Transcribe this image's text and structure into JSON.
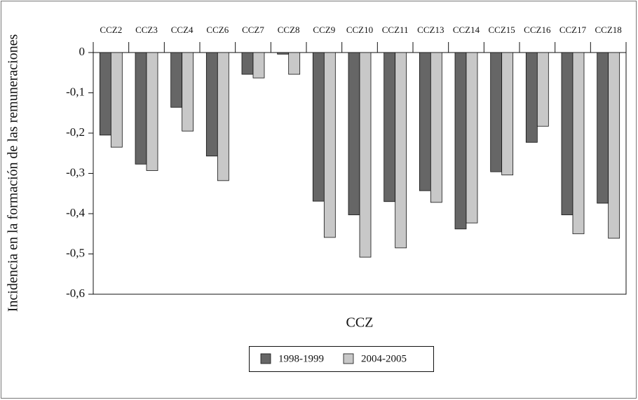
{
  "chart_data": {
    "type": "bar",
    "x_label": "CCZ",
    "y_label": "Incidencia en la formación de las remuneraciones",
    "categories": [
      "CCZ2",
      "CCZ3",
      "CCZ4",
      "CCZ6",
      "CCZ7",
      "CCZ8",
      "CCZ9",
      "CCZ10",
      "CCZ11",
      "CCZ13",
      "CCZ14",
      "CCZ15",
      "CCZ16",
      "CCZ17",
      "CCZ18"
    ],
    "series": [
      {
        "name": "1998-1999",
        "color": "#666666",
        "values": [
          -0.205,
          -0.277,
          -0.136,
          -0.257,
          -0.054,
          -0.004,
          -0.369,
          -0.403,
          -0.37,
          -0.343,
          -0.438,
          -0.296,
          -0.223,
          -0.403,
          -0.374
        ]
      },
      {
        "name": "2004-2005",
        "color": "#c8c8c8",
        "values": [
          -0.235,
          -0.293,
          -0.195,
          -0.318,
          -0.063,
          -0.054,
          -0.459,
          -0.508,
          -0.485,
          -0.372,
          -0.423,
          -0.304,
          -0.183,
          -0.45,
          -0.461
        ]
      }
    ],
    "ylim": [
      -0.6,
      0
    ],
    "yticks": [
      {
        "value": -0.6,
        "label": "-0,6"
      },
      {
        "value": -0.5,
        "label": "-0,5"
      },
      {
        "value": -0.4,
        "label": "-0,4"
      },
      {
        "value": -0.3,
        "label": "-0,3"
      },
      {
        "value": -0.2,
        "label": "-0,2"
      },
      {
        "value": -0.1,
        "label": "-0,1"
      },
      0
    ],
    "legend": "bottom"
  }
}
